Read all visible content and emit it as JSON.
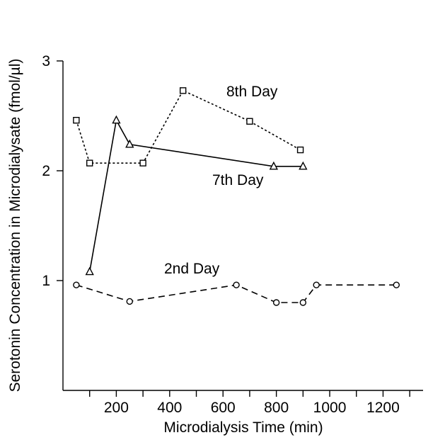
{
  "chart_data": {
    "type": "line",
    "title": "",
    "xlabel": "Microdialysis Time (min)",
    "ylabel": "Serotonin Concentration in Microdialysate (fmol/µl)",
    "xlim": [
      0,
      1350
    ],
    "ylim": [
      0,
      3
    ],
    "x_tick_values": [
      100,
      200,
      300,
      400,
      500,
      600,
      700,
      800,
      900,
      1000,
      1100,
      1200,
      1300
    ],
    "x_tick_labels": [
      {
        "value": 200,
        "label": "200"
      },
      {
        "value": 400,
        "label": "400"
      },
      {
        "value": 600,
        "label": "600"
      },
      {
        "value": 800,
        "label": "800"
      },
      {
        "value": 1000,
        "label": "1000"
      },
      {
        "value": 1200,
        "label": "1200"
      }
    ],
    "y_ticks": [
      {
        "value": 1,
        "label": "1"
      },
      {
        "value": 2,
        "label": "2"
      },
      {
        "value": 3,
        "label": "3"
      }
    ],
    "grid": false,
    "series": [
      {
        "name": "8th Day",
        "marker": "square",
        "line_style": "dotted",
        "x": [
          50,
          100,
          300,
          450,
          700,
          890
        ],
        "y": [
          2.46,
          2.07,
          2.07,
          2.73,
          2.45,
          2.19
        ]
      },
      {
        "name": "7th Day",
        "marker": "triangle",
        "line_style": "solid",
        "x": [
          100,
          200,
          250,
          790,
          900
        ],
        "y": [
          1.08,
          2.46,
          2.24,
          2.04,
          2.04
        ]
      },
      {
        "name": "2nd Day",
        "marker": "circle",
        "line_style": "dashed",
        "x": [
          50,
          250,
          650,
          800,
          900,
          950,
          1250
        ],
        "y": [
          0.96,
          0.81,
          0.96,
          0.8,
          0.8,
          0.96,
          0.96
        ]
      }
    ]
  }
}
